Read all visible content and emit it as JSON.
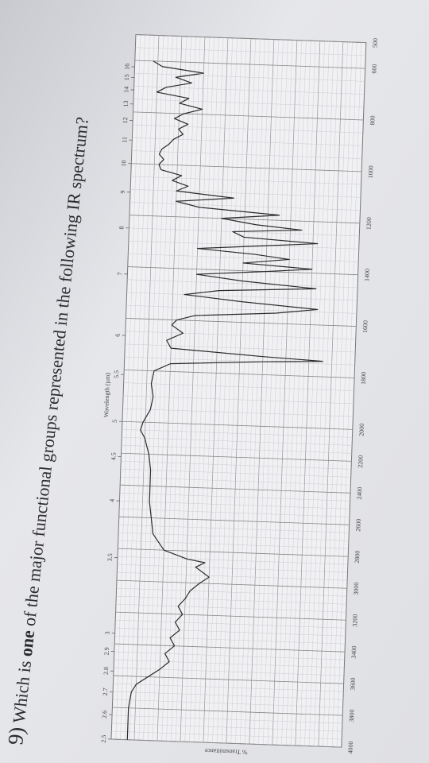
{
  "question": {
    "number": "9)",
    "text_before": "Which is",
    "emphasis": "one",
    "text_after": "of the major functional groups represented in the following IR spectrum?"
  },
  "chart_data": {
    "type": "line",
    "x2_label": "Wavelength (µm)",
    "y_label": "% Transmittance",
    "x": [
      4000,
      3900,
      3800,
      3700,
      3650,
      3600,
      3550,
      3500,
      3450,
      3400,
      3350,
      3300,
      3250,
      3200,
      3150,
      3100,
      3050,
      3000,
      2960,
      2930,
      2900,
      2870,
      2850,
      2800,
      2700,
      2600,
      2500,
      2400,
      2300,
      2200,
      2100,
      2050,
      2000,
      1950,
      1900,
      1850,
      1800,
      1770,
      1750,
      1740,
      1730,
      1710,
      1680,
      1650,
      1620,
      1600,
      1580,
      1560,
      1540,
      1520,
      1500,
      1480,
      1460,
      1440,
      1420,
      1400,
      1385,
      1370,
      1350,
      1335,
      1320,
      1300,
      1285,
      1270,
      1250,
      1235,
      1220,
      1200,
      1180,
      1160,
      1140,
      1120,
      1100,
      1080,
      1060,
      1040,
      1020,
      1000,
      980,
      960,
      940,
      920,
      900,
      880,
      860,
      840,
      820,
      800,
      780,
      760,
      740,
      720,
      700,
      680,
      660,
      640,
      620,
      600
    ],
    "series": [
      {
        "color": "#2a2a2a",
        "values": [
          93,
          93,
          93,
          92,
          90,
          85,
          80,
          76,
          78,
          74,
          76,
          72,
          74,
          71,
          73,
          70,
          68,
          64,
          60,
          63,
          66,
          62,
          70,
          80,
          85,
          86,
          87,
          87,
          87,
          88,
          90,
          92,
          91,
          88,
          87,
          88,
          87,
          80,
          40,
          14,
          40,
          80,
          82,
          75,
          80,
          78,
          70,
          35,
          17,
          50,
          75,
          60,
          18,
          50,
          70,
          40,
          20,
          50,
          30,
          45,
          70,
          40,
          18,
          50,
          55,
          25,
          45,
          60,
          35,
          70,
          80,
          55,
          80,
          75,
          82,
          78,
          87,
          88,
          86,
          88,
          87,
          84,
          82,
          78,
          80,
          76,
          82,
          78,
          70,
          80,
          76,
          90,
          86,
          75,
          82,
          70,
          88,
          92
        ]
      }
    ],
    "xlim": [
      4000,
      500
    ],
    "x_scale_break": 2000,
    "xticks": [
      4000,
      3800,
      3600,
      3400,
      3200,
      3000,
      2800,
      2600,
      2400,
      2200,
      2000,
      1800,
      1600,
      1400,
      1200,
      1000,
      800,
      600,
      500
    ],
    "x2ticks": [
      2.5,
      2.6,
      2.7,
      2.8,
      2.9,
      3,
      3.5,
      4,
      4.5,
      5,
      5.5,
      6,
      7,
      8,
      9,
      10,
      11,
      12,
      13,
      14,
      15,
      16
    ],
    "ylim": [
      0,
      100
    ],
    "grid": true
  }
}
